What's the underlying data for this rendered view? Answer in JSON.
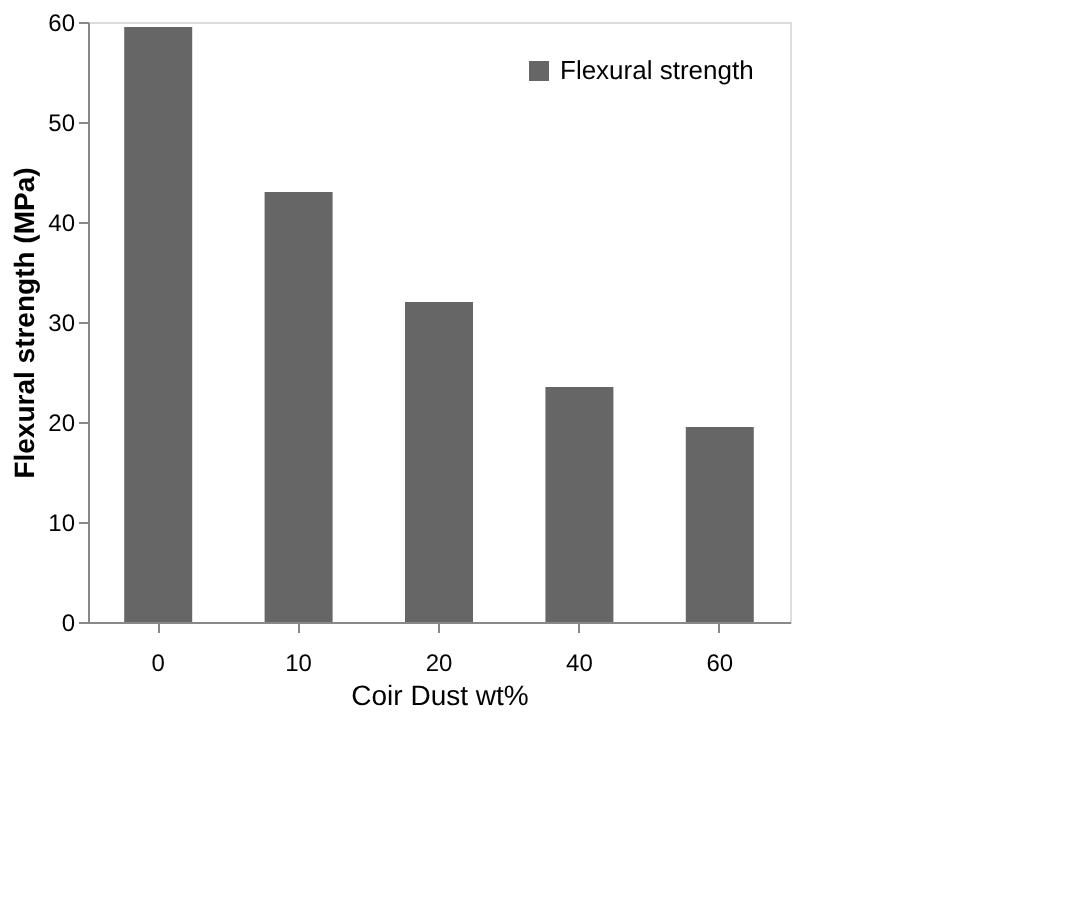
{
  "chart_data": {
    "type": "bar",
    "categories": [
      "0",
      "10",
      "20",
      "40",
      "60"
    ],
    "series": [
      {
        "name": "Flexural strength",
        "color": "#666666",
        "values": [
          59.5,
          43,
          32,
          23.5,
          19.5
        ]
      }
    ],
    "xlabel": "Coir Dust wt%",
    "ylabel": "Flexural strength (MPa)",
    "ylim": [
      0,
      60
    ],
    "yticks": [
      0,
      10,
      20,
      30,
      40,
      50,
      60
    ],
    "grid": false,
    "legend": "top right"
  }
}
